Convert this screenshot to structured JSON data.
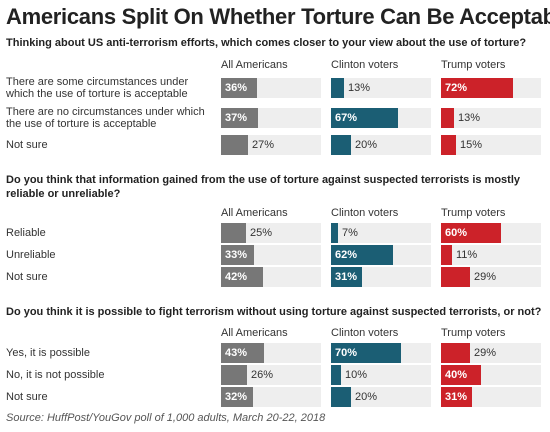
{
  "title": "Americans Split On Whether Torture Can Be Acceptable",
  "source": "Source: HuffPost/YouGov poll of 1,000 adults, March 20-22, 2018",
  "colors": {
    "All Americans": "#777777",
    "Clinton voters": "#1b5e74",
    "Trump voters": "#cc2229",
    "track": "#eeeeee"
  },
  "chart_data": {
    "type": "bar",
    "title": "Americans Split On Whether Torture Can Be Acceptable",
    "series_names": [
      "All Americans",
      "Clinton voters",
      "Trump voters"
    ],
    "unit": "%",
    "ylim": [
      0,
      100
    ],
    "panels": [
      {
        "question": "Thinking about US anti-terrorism efforts, which comes closer to your view about the use of torture?",
        "categories": [
          "There are some circumstances under which the use of torture is acceptable",
          "There are no circumstances under which the use of torture is acceptable",
          "Not sure"
        ],
        "series": [
          {
            "name": "All Americans",
            "values": [
              36,
              37,
              27
            ]
          },
          {
            "name": "Clinton voters",
            "values": [
              13,
              67,
              20
            ]
          },
          {
            "name": "Trump voters",
            "values": [
              72,
              13,
              15
            ]
          }
        ]
      },
      {
        "question": "Do you think that information gained from the use of torture against suspected terrorists is mostly reliable or unreliable?",
        "categories": [
          "Reliable",
          "Unreliable",
          "Not sure"
        ],
        "series": [
          {
            "name": "All Americans",
            "values": [
              25,
              33,
              42
            ]
          },
          {
            "name": "Clinton voters",
            "values": [
              7,
              62,
              31
            ]
          },
          {
            "name": "Trump voters",
            "values": [
              60,
              11,
              29
            ]
          }
        ]
      },
      {
        "question": "Do you think it is possible to fight terrorism without using torture against suspected terrorists, or not?",
        "categories": [
          "Yes, it is possible",
          "No, it is not possible",
          "Not sure"
        ],
        "series": [
          {
            "name": "All Americans",
            "values": [
              43,
              26,
              32
            ]
          },
          {
            "name": "Clinton voters",
            "values": [
              70,
              10,
              20
            ]
          },
          {
            "name": "Trump voters",
            "values": [
              29,
              40,
              31
            ]
          }
        ]
      }
    ]
  }
}
